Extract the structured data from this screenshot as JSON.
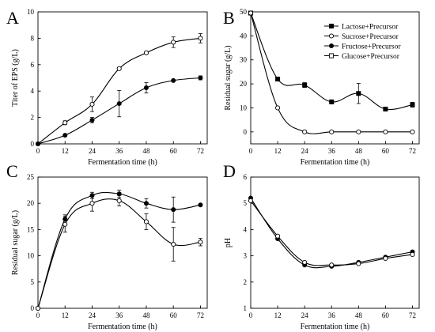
{
  "chart_data": [
    {
      "panel": "A",
      "type": "line",
      "xlabel": "Fermentation time (h)",
      "ylabel": "Titer of EPS (g/L)",
      "xlim": [
        0,
        75
      ],
      "ylim": [
        0,
        10
      ],
      "xticks": [
        "0",
        "12",
        "24",
        "36",
        "48",
        "60",
        "72"
      ],
      "yticks": [
        "0",
        "2",
        "4",
        "6",
        "8",
        "10"
      ],
      "x": [
        0,
        12,
        24,
        36,
        48,
        60,
        72
      ],
      "series": [
        {
          "marker": "open",
          "values": [
            0,
            1.6,
            3.0,
            5.7,
            6.9,
            7.7,
            8.0
          ],
          "errors": [
            0,
            0.15,
            0.55,
            0.1,
            0.1,
            0.4,
            0.35
          ]
        },
        {
          "marker": "filled",
          "values": [
            0,
            0.65,
            1.8,
            3.05,
            4.25,
            4.8,
            5.0
          ],
          "errors": [
            0,
            0.05,
            0.2,
            1.0,
            0.4,
            0.05,
            0.15
          ]
        }
      ]
    },
    {
      "panel": "B",
      "type": "line",
      "xlabel": "Fermentation time (h)",
      "ylabel": "Residual sugar (g/L)",
      "xlim": [
        0,
        75
      ],
      "ylim": [
        -5,
        50
      ],
      "xticks": [
        "0",
        "12",
        "24",
        "36",
        "48",
        "60",
        "72"
      ],
      "yticks": [
        "0",
        "10",
        "20",
        "30",
        "40",
        "50"
      ],
      "legend_position": "top-right",
      "legend": [
        {
          "marker": "square-filled",
          "label": "Lactose+Precursor"
        },
        {
          "marker": "circle-open",
          "label": "Sucrose+Precursor"
        },
        {
          "marker": "circle-filled",
          "label": "Fructose+Precursor"
        },
        {
          "marker": "square-open",
          "label": "Glucose+Precursor"
        }
      ],
      "x": [
        0,
        12,
        24,
        36,
        48,
        60,
        72
      ],
      "series": [
        {
          "name": "Lactose+Precursor",
          "marker": "square-filled",
          "values": [
            49.5,
            22.0,
            19.5,
            12.5,
            16.0,
            9.5,
            11.3
          ],
          "errors": [
            0,
            0.3,
            1.0,
            0.8,
            4.2,
            0.5,
            1.0
          ]
        },
        {
          "name": "Sucrose+Precursor",
          "marker": "circle-open",
          "values": [
            49.5,
            10.0,
            0,
            0,
            0,
            0,
            0
          ],
          "errors": [
            0,
            0.3,
            0,
            0,
            0,
            0,
            0
          ]
        }
      ]
    },
    {
      "panel": "C",
      "type": "line",
      "xlabel": "Fermentation time (h)",
      "ylabel": "Residual sugar (g/L)",
      "xlim": [
        0,
        75
      ],
      "ylim": [
        0,
        25
      ],
      "xticks": [
        "0",
        "12",
        "24",
        "36",
        "48",
        "60",
        "72"
      ],
      "yticks": [
        "0",
        "5",
        "10",
        "15",
        "20",
        "25"
      ],
      "x": [
        0,
        12,
        24,
        36,
        48,
        60,
        72
      ],
      "series": [
        {
          "marker": "filled",
          "values": [
            0,
            17.0,
            21.5,
            21.8,
            20.0,
            18.8,
            19.7
          ],
          "errors": [
            0,
            0.8,
            0.6,
            0.7,
            0.9,
            2.4,
            0.2
          ]
        },
        {
          "marker": "open",
          "values": [
            0,
            16.0,
            20.0,
            20.5,
            16.5,
            12.2,
            12.6
          ],
          "errors": [
            0,
            1.5,
            1.5,
            1.0,
            1.5,
            3.2,
            0.7
          ]
        }
      ]
    },
    {
      "panel": "D",
      "type": "line",
      "xlabel": "Fermentation time (h)",
      "ylabel": "pH",
      "xlim": [
        0,
        75
      ],
      "ylim": [
        1,
        6
      ],
      "xticks": [
        "0",
        "12",
        "24",
        "36",
        "48",
        "60",
        "72"
      ],
      "yticks": [
        "1",
        "2",
        "3",
        "4",
        "5",
        "6"
      ],
      "x": [
        0,
        12,
        24,
        36,
        48,
        60,
        72
      ],
      "series": [
        {
          "marker": "filled",
          "values": [
            5.2,
            3.65,
            2.65,
            2.6,
            2.75,
            2.95,
            3.15
          ],
          "errors": [
            0,
            0,
            0,
            0,
            0,
            0,
            0
          ]
        },
        {
          "marker": "open",
          "values": [
            5.1,
            3.75,
            2.75,
            2.65,
            2.7,
            2.9,
            3.05
          ],
          "errors": [
            0,
            0,
            0,
            0,
            0,
            0,
            0
          ]
        }
      ]
    }
  ]
}
